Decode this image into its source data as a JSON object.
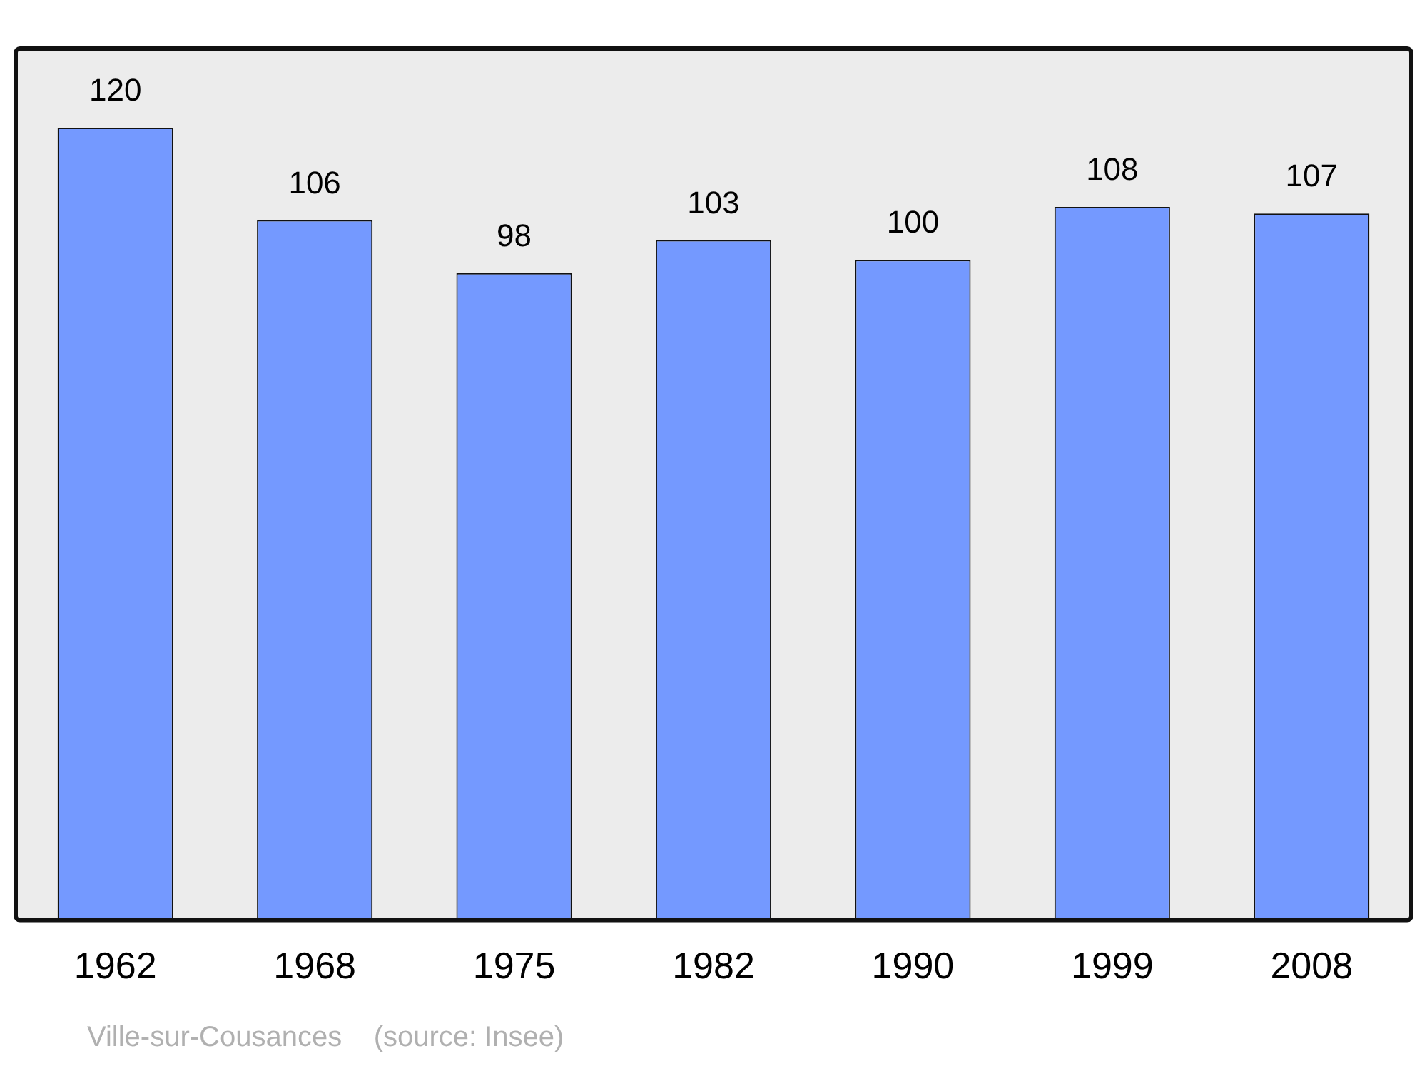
{
  "chart_data": {
    "type": "bar",
    "categories": [
      "1962",
      "1968",
      "1975",
      "1982",
      "1990",
      "1999",
      "2008"
    ],
    "values": [
      120,
      106,
      98,
      103,
      100,
      108,
      107
    ],
    "color": "#7499ff",
    "ylim": [
      0,
      132
    ],
    "tick_labels": "x",
    "data_labels": true,
    "grid": false,
    "legend": false,
    "annotations": [
      "Ville-sur-Cousances    (source: Insee)"
    ]
  }
}
